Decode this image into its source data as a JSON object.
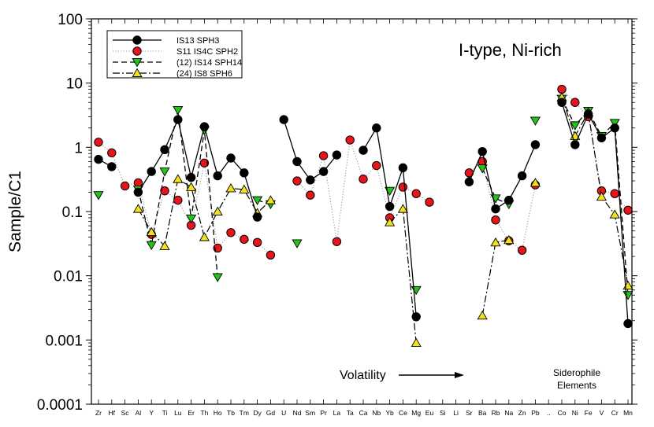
{
  "chart_data": {
    "type": "line",
    "title": "I-type, Ni-rich",
    "xlabel": "",
    "ylabel": "Sample/C1",
    "yscale": "log",
    "ylim": [
      0.0001,
      100
    ],
    "yticks": [
      {
        "value": 0.0001,
        "label": "0.0001"
      },
      {
        "value": 0.001,
        "label": "0.001"
      },
      {
        "value": 0.01,
        "label": "0.01"
      },
      {
        "value": 0.1,
        "label": "0.1"
      },
      {
        "value": 1,
        "label": "1"
      },
      {
        "value": 10,
        "label": "10"
      },
      {
        "value": 100,
        "label": "100"
      }
    ],
    "categories": [
      "Zr",
      "Hf",
      "Sc",
      "Al",
      "Y",
      "Ti",
      "Lu",
      "Er",
      "Th",
      "Ho",
      "Tb",
      "Tm",
      "Dy",
      "Gd",
      "U",
      "Nd",
      "Sm",
      "Pr",
      "La",
      "Ta",
      "Ca",
      "Nb",
      "Yb",
      "Ce",
      "Mg",
      "Eu",
      "Si",
      "Li",
      "Sr",
      "Ba",
      "Rb",
      "Na",
      "Zn",
      "Pb",
      "..",
      "Co",
      "Ni",
      "Fe",
      "V",
      "Cr",
      "Mn"
    ],
    "legend_position": "top-left",
    "series": [
      {
        "name": "IS13 SPH3",
        "line": "solid",
        "marker": "circle",
        "marker_color": "#000000",
        "values": [
          0.65,
          0.5,
          null,
          0.2,
          0.42,
          0.92,
          2.7,
          0.34,
          2.1,
          0.36,
          0.68,
          0.4,
          0.082,
          null,
          2.7,
          0.6,
          0.31,
          0.42,
          0.76,
          null,
          0.9,
          2.0,
          0.12,
          0.48,
          0.0023,
          null,
          null,
          null,
          0.29,
          0.86,
          0.11,
          0.15,
          0.36,
          1.1,
          null,
          5.0,
          1.1,
          3.3,
          1.4,
          2.0,
          0.0018
        ]
      },
      {
        "name": "S11 IS4C SPH2",
        "line": "dotted",
        "marker": "circle",
        "marker_color": "#e8141a",
        "values": [
          1.2,
          0.82,
          0.25,
          0.28,
          0.044,
          0.21,
          0.15,
          0.061,
          0.57,
          0.027,
          0.047,
          0.037,
          0.033,
          0.021,
          null,
          0.3,
          0.18,
          0.74,
          0.034,
          1.3,
          0.32,
          0.52,
          0.08,
          0.24,
          0.19,
          0.14,
          null,
          null,
          0.4,
          0.6,
          0.074,
          0.035,
          0.025,
          0.26,
          null,
          8.0,
          5.0,
          3.0,
          0.21,
          0.19,
          0.105
        ]
      },
      {
        "name": "(12) IS14 SPH14",
        "line": "dashed",
        "marker": "triangle-down",
        "marker_color": "#22c41a",
        "values": [
          0.18,
          null,
          null,
          0.22,
          0.03,
          0.42,
          3.8,
          0.078,
          1.85,
          0.0095,
          null,
          null,
          0.15,
          0.13,
          null,
          0.032,
          null,
          null,
          null,
          null,
          null,
          null,
          0.21,
          null,
          0.006,
          null,
          null,
          null,
          null,
          0.47,
          0.16,
          0.13,
          null,
          2.6,
          null,
          5.7,
          2.2,
          3.7,
          1.5,
          2.4,
          0.005
        ]
      },
      {
        "name": "(24) IS8 SPH6",
        "line": "dashdot",
        "marker": "triangle-up",
        "marker_color": "#f2e21a",
        "values": [
          null,
          null,
          null,
          0.11,
          0.048,
          0.029,
          0.32,
          0.24,
          0.04,
          0.1,
          0.23,
          0.22,
          0.095,
          0.15,
          null,
          null,
          null,
          null,
          null,
          null,
          null,
          null,
          0.068,
          0.11,
          0.0009,
          null,
          null,
          null,
          null,
          0.0024,
          0.033,
          0.036,
          null,
          0.28,
          null,
          6.0,
          1.5,
          3.5,
          0.17,
          0.09,
          0.007
        ]
      }
    ],
    "annotations": {
      "volatility": "Volatility",
      "siderophile_line1": "Siderophile",
      "siderophile_line2": "Elements"
    }
  }
}
